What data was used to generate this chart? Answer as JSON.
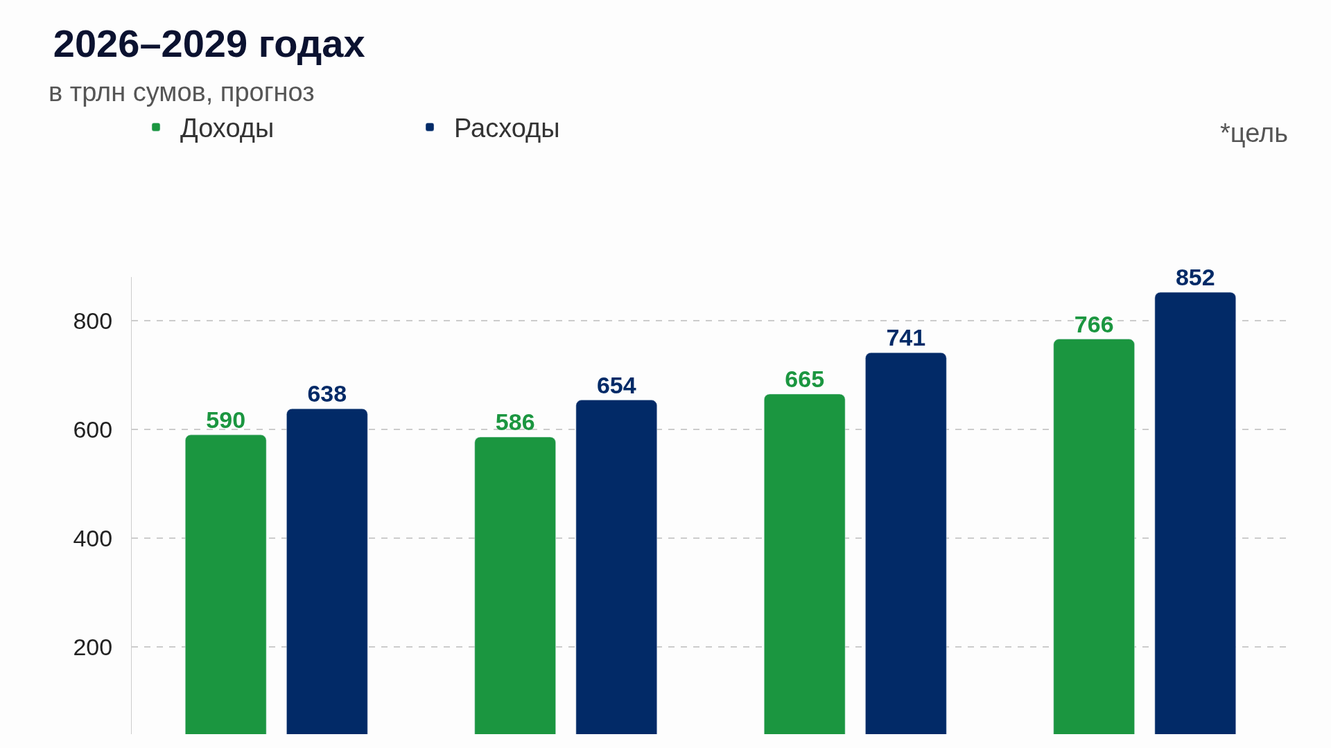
{
  "chart_data": {
    "type": "bar",
    "title": "2026–2029 годах",
    "subtitle": "в трлн сумов, прогноз",
    "categories": [
      null,
      null,
      null,
      null
    ],
    "series": [
      {
        "name": "Доходы",
        "color": "#1b9640",
        "values": [
          590,
          586,
          665,
          766
        ]
      },
      {
        "name": "Расходы",
        "color": "#022a67",
        "values": [
          638,
          654,
          741,
          852
        ]
      }
    ],
    "data_labels": true,
    "ylim": [
      40,
      880
    ],
    "yticks": [
      200,
      400,
      600,
      800
    ],
    "grid": "y",
    "legend": "top left",
    "annotations": [
      "*цель"
    ]
  }
}
